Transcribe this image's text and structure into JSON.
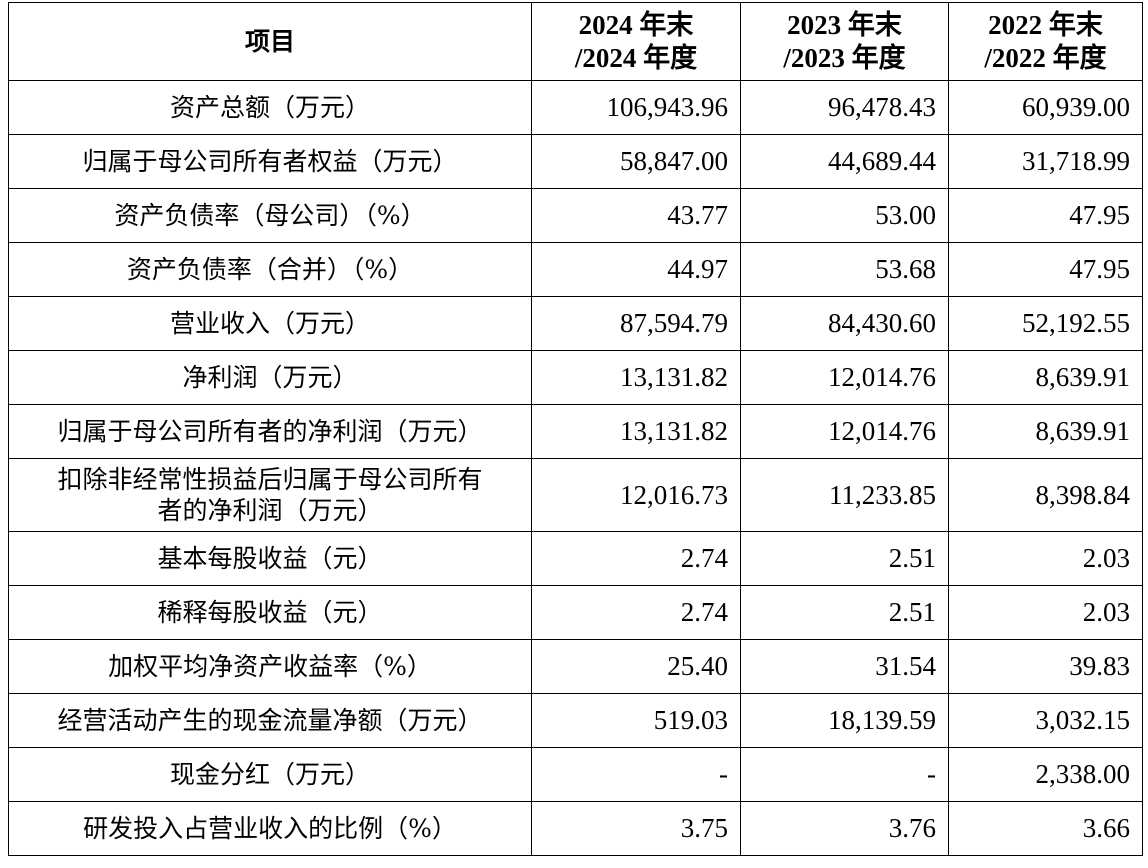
{
  "table": {
    "headers": {
      "item": "项目",
      "col1_line1": "2024 年末",
      "col1_line2": "/2024 年度",
      "col2_line1": "2023 年末",
      "col2_line2": "/2023 年度",
      "col3_line1": "2022 年末",
      "col3_line2": "/2022 年度"
    },
    "rows": [
      {
        "item": "资产总额（万元）",
        "y2024": "106,943.96",
        "y2023": "96,478.43",
        "y2022": "60,939.00"
      },
      {
        "item": "归属于母公司所有者权益（万元）",
        "y2024": "58,847.00",
        "y2023": "44,689.44",
        "y2022": "31,718.99"
      },
      {
        "item": "资产负债率（母公司）（%）",
        "y2024": "43.77",
        "y2023": "53.00",
        "y2022": "47.95"
      },
      {
        "item": "资产负债率（合并）（%）",
        "y2024": "44.97",
        "y2023": "53.68",
        "y2022": "47.95"
      },
      {
        "item": "营业收入（万元）",
        "y2024": "87,594.79",
        "y2023": "84,430.60",
        "y2022": "52,192.55"
      },
      {
        "item": "净利润（万元）",
        "y2024": "13,131.82",
        "y2023": "12,014.76",
        "y2022": "8,639.91"
      },
      {
        "item": "归属于母公司所有者的净利润（万元）",
        "y2024": "13,131.82",
        "y2023": "12,014.76",
        "y2022": "8,639.91"
      },
      {
        "item_line1": "扣除非经常性损益后归属于母公司所有",
        "item_line2": "者的净利润（万元）",
        "y2024": "12,016.73",
        "y2023": "11,233.85",
        "y2022": "8,398.84"
      },
      {
        "item": "基本每股收益（元）",
        "y2024": "2.74",
        "y2023": "2.51",
        "y2022": "2.03"
      },
      {
        "item": "稀释每股收益（元）",
        "y2024": "2.74",
        "y2023": "2.51",
        "y2022": "2.03"
      },
      {
        "item": "加权平均净资产收益率（%）",
        "y2024": "25.40",
        "y2023": "31.54",
        "y2022": "39.83"
      },
      {
        "item": "经营活动产生的现金流量净额（万元）",
        "y2024": "519.03",
        "y2023": "18,139.59",
        "y2022": "3,032.15"
      },
      {
        "item": "现金分红（万元）",
        "y2024": "-",
        "y2023": "-",
        "y2022": "2,338.00"
      },
      {
        "item": "研发投入占营业收入的比例（%）",
        "y2024": "3.75",
        "y2023": "3.76",
        "y2022": "3.66"
      }
    ]
  }
}
